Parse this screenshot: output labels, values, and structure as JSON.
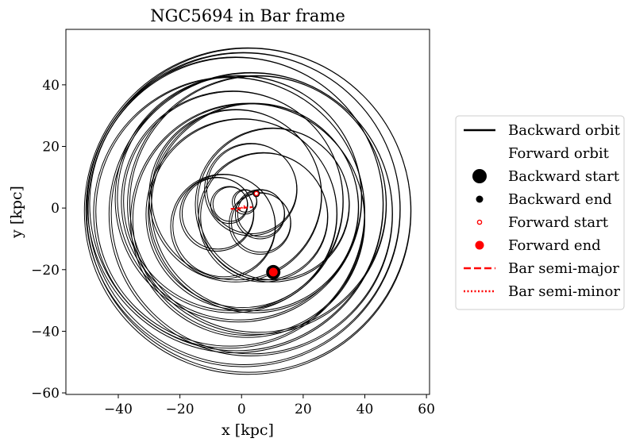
{
  "chart_data": {
    "type": "line",
    "title": "NGC5694 in Bar frame",
    "xlabel": "x [kpc]",
    "ylabel": "y [kpc]",
    "xlim": [
      -57,
      61
    ],
    "ylim": [
      -60.5,
      58
    ],
    "xticks": [
      -40,
      -20,
      0,
      20,
      40,
      60
    ],
    "yticks": [
      -60,
      -40,
      -20,
      0,
      20,
      40
    ],
    "grid": false,
    "legend_position": "outside-right",
    "series": [
      {
        "name": "Backward orbit",
        "style": "solid",
        "color": "#000000",
        "loops": [
          {
            "cx": 2.0,
            "cy": -1.0,
            "r": 53.0
          },
          {
            "cx": 0.5,
            "cy": -0.5,
            "r": 51.0
          },
          {
            "cx": -2.0,
            "cy": 1.0,
            "r": 48.0
          },
          {
            "cx": 3.0,
            "cy": -2.0,
            "r": 46.0
          },
          {
            "cx": -4.0,
            "cy": -1.5,
            "r": 44.0
          },
          {
            "cx": 5.0,
            "cy": 1.0,
            "r": 42.0
          },
          {
            "cx": -1.0,
            "cy": 3.0,
            "r": 40.0
          },
          {
            "cx": 2.0,
            "cy": -4.0,
            "r": 38.0
          },
          {
            "cx": -3.0,
            "cy": 2.0,
            "r": 36.0
          },
          {
            "cx": 4.0,
            "cy": 0.0,
            "r": 34.0
          },
          {
            "cx": 0.0,
            "cy": -2.0,
            "r": 31.0
          },
          {
            "cx": -2.0,
            "cy": 4.0,
            "r": 28.0
          },
          {
            "cx": 10.0,
            "cy": 1.0,
            "r": 25.0
          },
          {
            "cx": 7.0,
            "cy": -3.0,
            "r": 21.0
          },
          {
            "cx": -6.0,
            "cy": -6.0,
            "r": 17.0
          },
          {
            "cx": 3.0,
            "cy": 6.0,
            "r": 15.0
          },
          {
            "cx": -8.0,
            "cy": -2.0,
            "r": 12.0
          },
          {
            "cx": 6.0,
            "cy": -5.0,
            "r": 10.0
          },
          {
            "cx": 6.0,
            "cy": -2.0,
            "r": 8.0
          },
          {
            "cx": -4.0,
            "cy": 1.0,
            "r": 6.0
          },
          {
            "cx": 1.0,
            "cy": 2.0,
            "r": 4.0
          }
        ]
      },
      {
        "name": "Forward orbit",
        "style": "solid",
        "color": "#ffffff"
      },
      {
        "name": "Backward start",
        "type": "marker",
        "x": 10.3,
        "y": -20.8,
        "color": "#000000",
        "size": "large"
      },
      {
        "name": "Backward end",
        "type": "marker",
        "x": 4.8,
        "y": 4.7,
        "color": "#000000",
        "size": "small"
      },
      {
        "name": "Forward start",
        "type": "marker",
        "x": 4.8,
        "y": 4.7,
        "color": "#ff0000",
        "style": "open"
      },
      {
        "name": "Forward end",
        "type": "marker",
        "x": 10.3,
        "y": -20.8,
        "color": "#ff0000",
        "size": "medium"
      },
      {
        "name": "Bar semi-major",
        "style": "dashed",
        "color": "#ff0000",
        "x": [
          -3.5,
          3.5
        ],
        "y": [
          -0.3,
          0.3
        ]
      },
      {
        "name": "Bar semi-minor",
        "style": "dotted",
        "color": "#ff0000",
        "x": [
          -1.5,
          1.5
        ],
        "y": [
          -1.0,
          1.0
        ]
      }
    ]
  }
}
